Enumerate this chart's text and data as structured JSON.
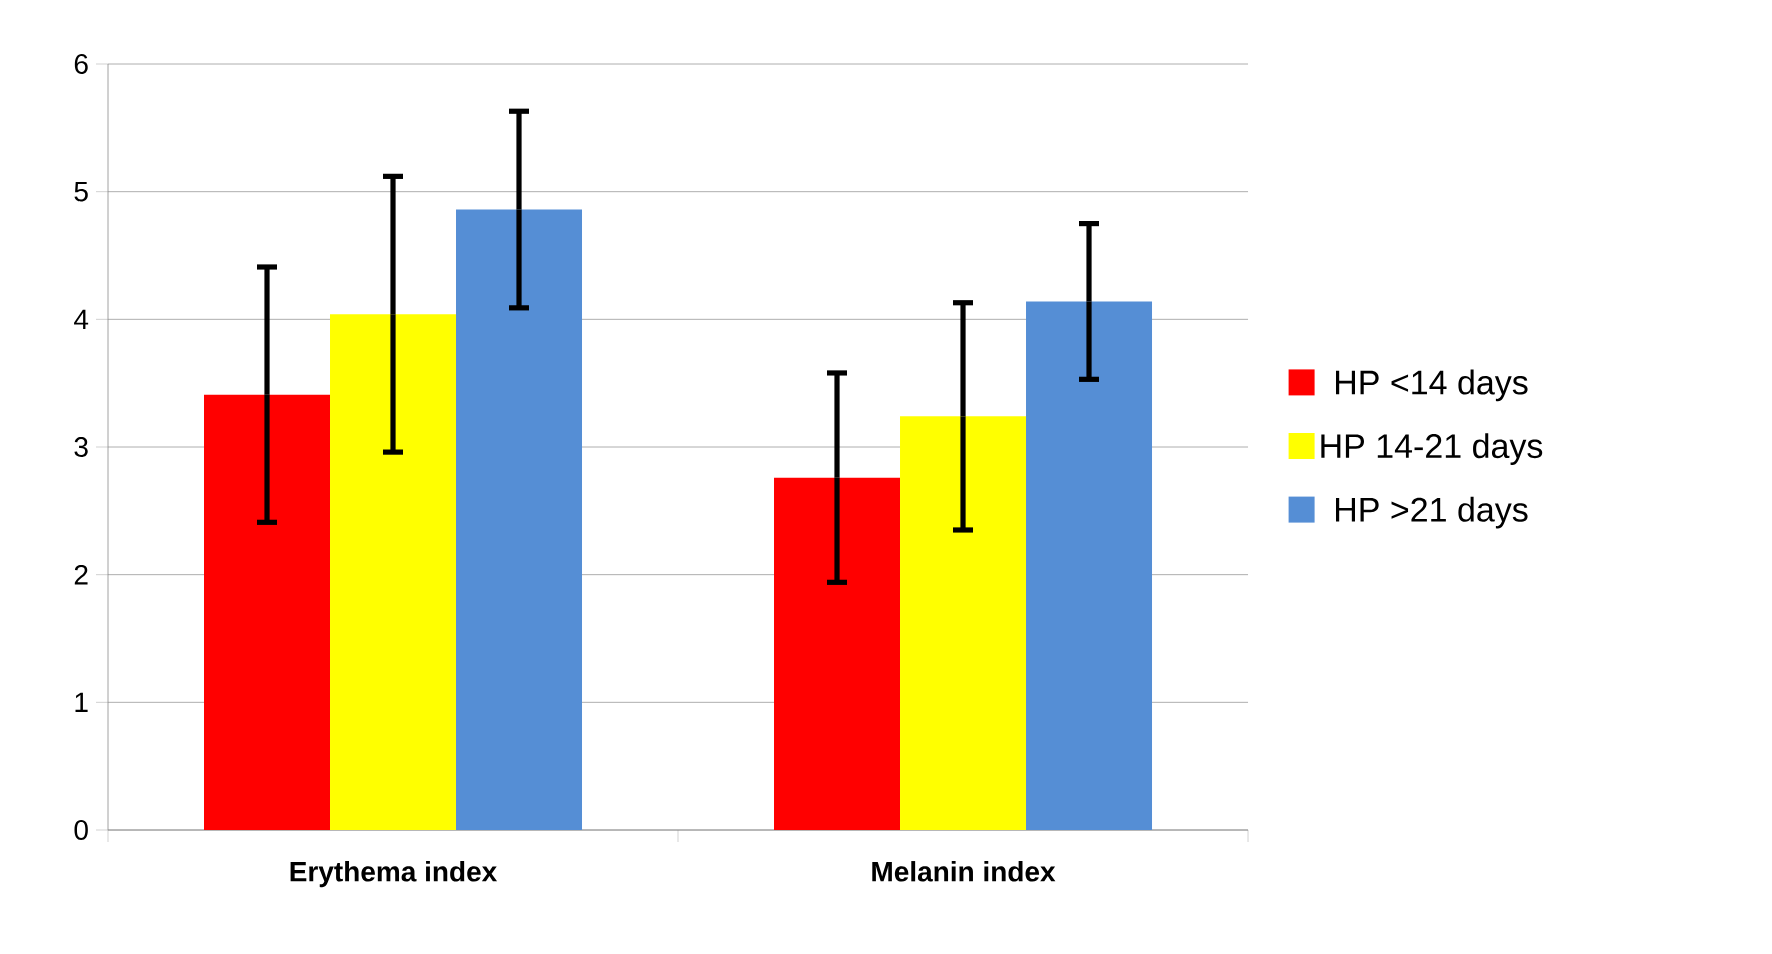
{
  "chart_data": {
    "type": "bar",
    "categories": [
      "Erythema index",
      "Melanin index"
    ],
    "series": [
      {
        "name": "HP <14 days",
        "color": "#ff0000",
        "values": [
          3.41,
          2.76
        ],
        "errors": [
          1.0,
          0.82
        ]
      },
      {
        "name": "HP 14-21 days",
        "color": "#ffff00",
        "values": [
          4.04,
          3.24
        ],
        "errors": [
          1.08,
          0.89
        ]
      },
      {
        "name": "HP >21 days",
        "color": "#558ed5",
        "values": [
          4.86,
          4.14
        ],
        "errors": [
          0.77,
          0.61
        ]
      }
    ],
    "ylim": [
      0,
      6
    ],
    "yticks": [
      0,
      1,
      2,
      3,
      4,
      5,
      6
    ],
    "grid": "y",
    "legend": "right"
  }
}
